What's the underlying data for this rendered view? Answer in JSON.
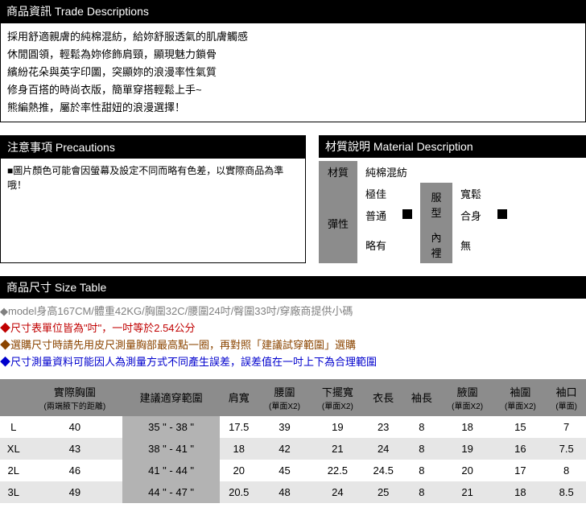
{
  "trade": {
    "header": "商品資訊 Trade Descriptions",
    "lines": [
      "採用舒適親膚的純棉混紡，給妳舒服透氣的肌膚觸感",
      "休閒圓領，輕鬆為妳修飾肩頸，顯現魅力鎖骨",
      "繽紛花朵與英字印圖，突顯妳的浪漫率性氣質",
      "修身百搭的時尚衣版，簡單穿搭輕鬆上手~",
      "熊編熱推，屬於率性甜妞的浪漫選擇！"
    ]
  },
  "precautions": {
    "header": "注意事項 Precautions",
    "text": "■圖片顏色可能會因螢幕及設定不同而略有色差，以實際商品為準哦！"
  },
  "material": {
    "header": "材質說明 Material Description",
    "label_material": "材質",
    "value_material": "純棉混紡",
    "label_stretch": "彈性",
    "stretch_opts": [
      "極佳",
      "普通",
      "略有"
    ],
    "stretch_selected": 1,
    "label_fit": "服型",
    "fit_opts": [
      "寬鬆",
      "合身"
    ],
    "fit_selected": 1,
    "label_lining": "內裡",
    "value_lining": "無"
  },
  "size": {
    "header": "商品尺寸 Size Table",
    "notes": [
      {
        "cls": "note-gray",
        "text": "◆model身高167CM/體重42KG/胸圍32C/腰圍24吋/臀圍33吋/穿廠商提供小碼"
      },
      {
        "cls": "note-red",
        "text": "◆尺寸表單位皆為\"吋\"，一吋等於2.54公分"
      },
      {
        "cls": "note-brown",
        "text": "◆選購尺寸時請先用皮尺測量胸部最高點一圈，再對照「建議試穿範圍」選購"
      },
      {
        "cls": "note-blue",
        "text": "◆尺寸測量資料可能因人為測量方式不同產生誤差，誤差值在一吋上下為合理範圍"
      }
    ],
    "columns": [
      {
        "main": "",
        "sub": ""
      },
      {
        "main": "實際胸圍",
        "sub": "(兩端腋下的距離)"
      },
      {
        "main": "建議適穿範圍",
        "sub": ""
      },
      {
        "main": "肩寬",
        "sub": ""
      },
      {
        "main": "腰圍",
        "sub": "(單面X2)"
      },
      {
        "main": "下擺寬",
        "sub": "(單面X2)"
      },
      {
        "main": "衣長",
        "sub": ""
      },
      {
        "main": "袖長",
        "sub": ""
      },
      {
        "main": "腋圍",
        "sub": "(單面X2)"
      },
      {
        "main": "袖圍",
        "sub": "(單面X2)"
      },
      {
        "main": "袖口",
        "sub": "(單面)"
      }
    ],
    "rows": [
      [
        "L",
        "40",
        "35 \" - 38 \"",
        "17.5",
        "39",
        "19",
        "23",
        "8",
        "18",
        "15",
        "7"
      ],
      [
        "XL",
        "43",
        "38 \" - 41 \"",
        "18",
        "42",
        "21",
        "24",
        "8",
        "19",
        "16",
        "7.5"
      ],
      [
        "2L",
        "46",
        "41 \" - 44 \"",
        "20",
        "45",
        "22.5",
        "24.5",
        "8",
        "20",
        "17",
        "8"
      ],
      [
        "3L",
        "49",
        "44 \" - 47 \"",
        "20.5",
        "48",
        "24",
        "25",
        "8",
        "21",
        "18",
        "8.5"
      ]
    ]
  }
}
